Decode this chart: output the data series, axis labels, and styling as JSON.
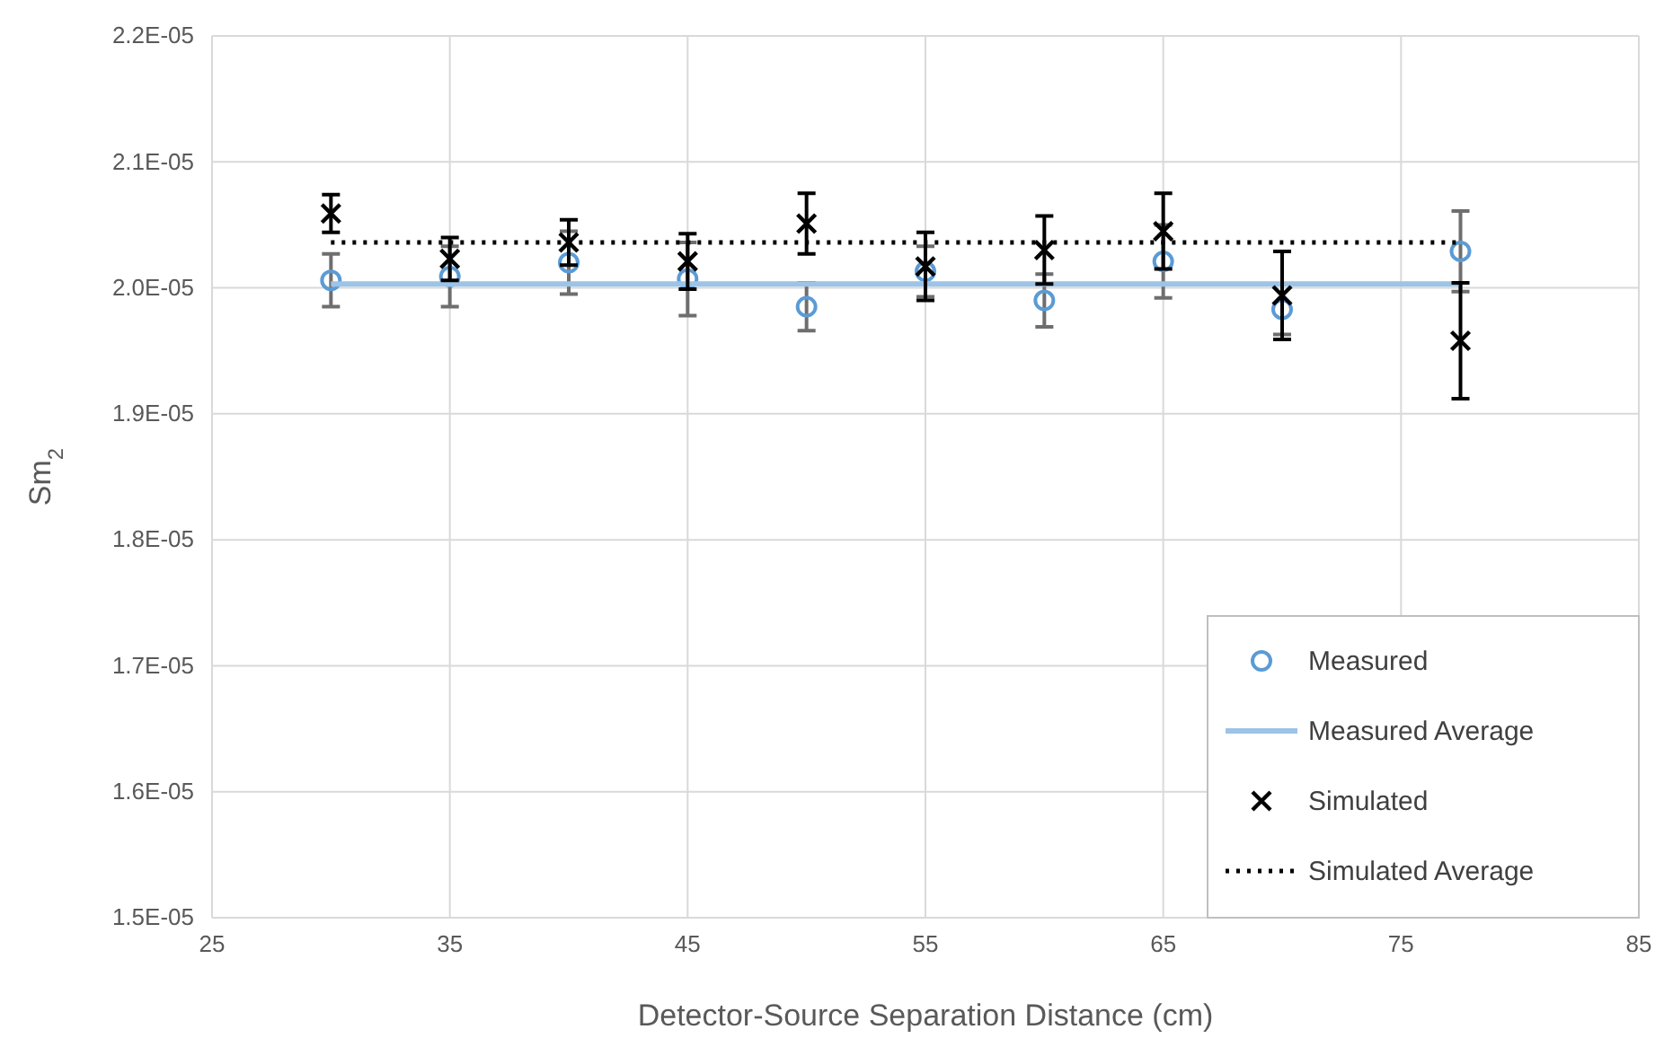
{
  "chart_data": {
    "type": "scatter",
    "xlabel": "Detector-Source Separation Distance (cm)",
    "ylabel": "Sm$_{2}$",
    "xlim": [
      25,
      85
    ],
    "xticks": [
      25,
      35,
      45,
      55,
      65,
      75,
      85
    ],
    "ylim": [
      1.5e-05,
      2.2e-05
    ],
    "yticks": [
      {
        "value": 1.5e-05,
        "label": "1.5E-05"
      },
      {
        "value": 1.6e-05,
        "label": "1.6E-05"
      },
      {
        "value": 1.7e-05,
        "label": "1.7E-05"
      },
      {
        "value": 1.8e-05,
        "label": "1.8E-05"
      },
      {
        "value": 1.9e-05,
        "label": "1.9E-05"
      },
      {
        "value": 2e-05,
        "label": "2.0E-05"
      },
      {
        "value": 2.1e-05,
        "label": "2.1E-05"
      },
      {
        "value": 2.2e-05,
        "label": "2.2E-05"
      }
    ],
    "grid": true,
    "legend": "bottom right",
    "series": [
      {
        "name": "Measured",
        "marker": "circle",
        "color": "#5b9bd5",
        "x": [
          30,
          35,
          40,
          45,
          50,
          55,
          60,
          65,
          70,
          77.5
        ],
        "values": [
          2.006e-05,
          2.009e-05,
          2.02e-05,
          2.007e-05,
          1.985e-05,
          2.013e-05,
          1.99e-05,
          2.021e-05,
          1.983e-05,
          2.029e-05
        ],
        "errors": [
          2.1e-07,
          2.4e-07,
          2.5e-07,
          2.9e-07,
          1.9e-07,
          2e-07,
          2.1e-07,
          2.9e-07,
          2e-07,
          3.2e-07
        ]
      },
      {
        "name": "Measured Average",
        "type": "line",
        "line_style": "solid",
        "color": "#9dc3e6",
        "x": [
          30,
          77.5
        ],
        "values": [
          2.003e-05,
          2.003e-05
        ]
      },
      {
        "name": "Simulated",
        "marker": "cross",
        "color": "#000000",
        "x": [
          30,
          35,
          40,
          45,
          50,
          55,
          60,
          65,
          70,
          77.5
        ],
        "values": [
          2.059e-05,
          2.023e-05,
          2.036e-05,
          2.021e-05,
          2.051e-05,
          2.017e-05,
          2.03e-05,
          2.045e-05,
          1.994e-05,
          1.958e-05
        ],
        "errors": [
          1.5e-07,
          1.7e-07,
          1.8e-07,
          2.2e-07,
          2.4e-07,
          2.7e-07,
          2.7e-07,
          3e-07,
          3.5e-07,
          4.6e-07
        ]
      },
      {
        "name": "Simulated Average",
        "type": "line",
        "line_style": "dotted",
        "color": "#000000",
        "x": [
          30,
          77.5
        ],
        "values": [
          2.036e-05,
          2.036e-05
        ]
      }
    ]
  }
}
